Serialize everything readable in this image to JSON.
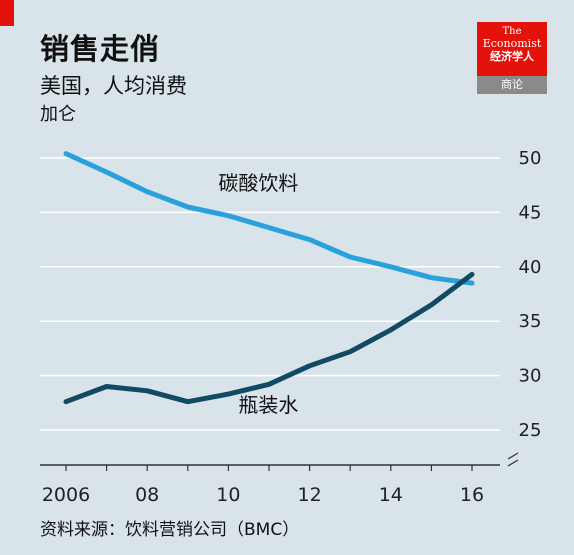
{
  "header": {
    "title": "销售走俏",
    "subtitle": "美国，人均消费",
    "unit": "加仑"
  },
  "logo": {
    "line1": "The",
    "line2": "Economist",
    "line3": "经济学人",
    "tag": "商论"
  },
  "footer": {
    "source": "资料来源：饮料营销公司（BMC）"
  },
  "colors": {
    "background": "#d8e3ea",
    "carbonated": "#2aa0dc",
    "water": "#104a63",
    "gridline": "#ffffff",
    "brand_red": "#e3120b"
  },
  "chart_data": {
    "type": "line",
    "title": "销售走俏",
    "subtitle": "美国，人均消费",
    "ylabel": "加仑",
    "x": [
      2006,
      2007,
      2008,
      2009,
      2010,
      2011,
      2012,
      2013,
      2014,
      2015,
      2016
    ],
    "x_tick_labels": [
      "2006",
      "08",
      "10",
      "12",
      "14",
      "16"
    ],
    "x_tick_values": [
      2006,
      2008,
      2010,
      2012,
      2014,
      2016
    ],
    "y_ticks": [
      25,
      30,
      35,
      40,
      45,
      50
    ],
    "ylim": [
      22,
      52
    ],
    "axis_break": true,
    "grid": true,
    "series": [
      {
        "name": "碳酸饮料",
        "color": "#2aa0dc",
        "values": [
          50.4,
          48.7,
          46.9,
          45.5,
          44.7,
          43.6,
          42.5,
          40.9,
          40.0,
          39.0,
          38.5
        ]
      },
      {
        "name": "瓶装水",
        "color": "#104a63",
        "values": [
          27.6,
          29.0,
          28.6,
          27.6,
          28.3,
          29.2,
          30.9,
          32.2,
          34.2,
          36.5,
          39.3
        ]
      }
    ]
  }
}
